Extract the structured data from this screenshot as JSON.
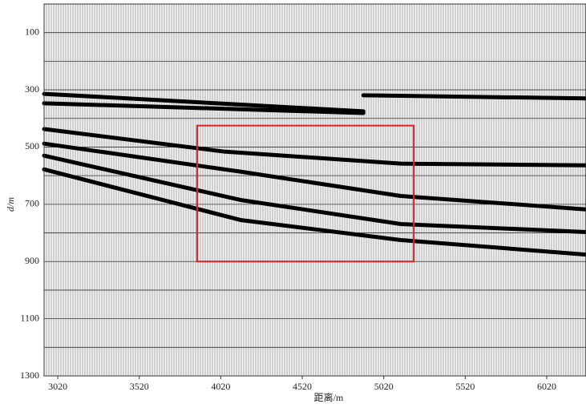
{
  "chart_data": {
    "type": "seismic",
    "xlabel": "距离/m",
    "ylabel": "d/m",
    "xlim": [
      2936,
      6261
    ],
    "ylim": [
      0,
      1300
    ],
    "y_inverted": true,
    "xticks": [
      3020,
      3520,
      4020,
      4520,
      5020,
      5520,
      6020
    ],
    "yticks": [
      100,
      300,
      500,
      700,
      900,
      1100,
      1300
    ],
    "minor_yticks": [
      200,
      400,
      600,
      800,
      1000,
      1200
    ],
    "series": [
      {
        "color": "#000000",
        "x": [
          2936,
          4895
        ],
        "values": [
          314,
          375
        ]
      },
      {
        "color": "#000000",
        "x": [
          2936,
          4895
        ],
        "values": [
          347,
          381
        ]
      },
      {
        "color": "#000000",
        "x": [
          4895,
          6261
        ],
        "values": [
          319,
          330
        ]
      },
      {
        "color": "#000000",
        "x": [
          2936,
          4043,
          5125,
          6261
        ],
        "values": [
          437,
          516,
          558,
          564
        ]
      },
      {
        "color": "#000000",
        "x": [
          2936,
          4141,
          5125,
          6261
        ],
        "values": [
          488,
          586,
          671,
          718
        ]
      },
      {
        "color": "#000000",
        "x": [
          2936,
          4141,
          5125,
          6261
        ],
        "values": [
          530,
          685,
          769,
          797
        ]
      },
      {
        "color": "#000000",
        "x": [
          2936,
          4141,
          5125,
          6261
        ],
        "values": [
          578,
          755,
          825,
          876
        ]
      }
    ],
    "highlight_box": {
      "color": "#e0202a",
      "x": [
        3875,
        5204
      ],
      "y": [
        425,
        900
      ]
    }
  }
}
